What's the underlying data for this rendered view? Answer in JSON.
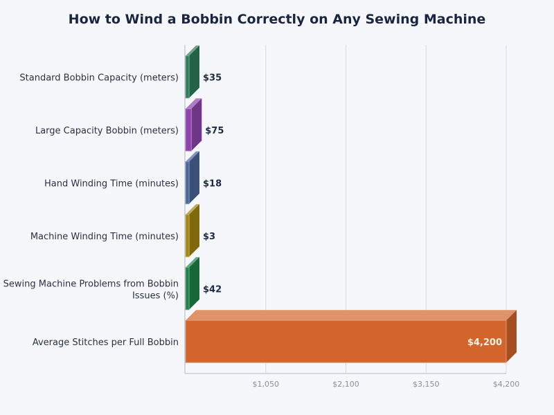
{
  "chart_data": {
    "type": "bar",
    "orientation": "horizontal",
    "title": "How to Wind a Bobbin Correctly on Any Sewing Machine",
    "categories": [
      "Standard Bobbin Capacity (meters)",
      "Large Capacity Bobbin (meters)",
      "Hand Winding Time (minutes)",
      "Machine Winding Time (minutes)",
      "Sewing Machine Problems from Bobbin Issues (%)",
      "Average Stitches per Full Bobbin"
    ],
    "values": [
      35,
      75,
      18,
      3,
      42,
      4200
    ],
    "data_labels": [
      "$35",
      "$75",
      "$18",
      "$3",
      "$42",
      "$4,200"
    ],
    "colors": [
      "#2e7d5b",
      "#8e44ad",
      "#4a6799",
      "#a3870f",
      "#1e8449",
      "#d2642c"
    ],
    "xlim": [
      0,
      4200
    ],
    "xticks": [
      1050,
      2100,
      3150,
      4200
    ],
    "xtick_labels": [
      "$1,050",
      "$2,100",
      "$3,150",
      "$4,200"
    ],
    "grid": true,
    "style": "3d"
  }
}
